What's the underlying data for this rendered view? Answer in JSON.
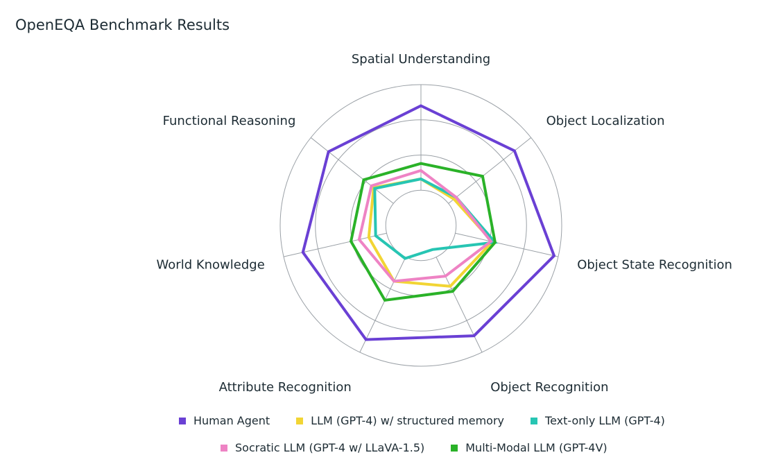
{
  "title": "OpenEQA Benchmark Results",
  "chart_data": {
    "type": "radar",
    "title": "OpenEQA Benchmark Results",
    "axes": [
      "Spatial Understanding",
      "Object Localization",
      "Object State Recognition",
      "Object Recognition",
      "Attribute Recognition",
      "World Knowledge",
      "Functional Reasoning"
    ],
    "rlim": [
      0,
      100
    ],
    "rings": 4,
    "grid": true,
    "legend_position": "bottom",
    "series": [
      {
        "name": "Human Agent",
        "color": "#6a40d4",
        "values": [
          85,
          85,
          97,
          87,
          90,
          86,
          84
        ]
      },
      {
        "name": "LLM (GPT-4) w/ structured memory",
        "color": "#f2d534",
        "values": [
          33,
          30,
          52,
          48,
          44,
          38,
          43
        ]
      },
      {
        "name": "Text-only LLM (GPT-4)",
        "color": "#27c5b3",
        "values": [
          33,
          32,
          54,
          19,
          26,
          33,
          42
        ]
      },
      {
        "name": "Socratic LLM (GPT-4 w/ LLaVA-1.5)",
        "color": "#ee83c4",
        "values": [
          39,
          32,
          51,
          40,
          44,
          45,
          45
        ]
      },
      {
        "name": "Multi-Modal LLM (GPT-4V)",
        "color": "#2ab228",
        "values": [
          44,
          56,
          54,
          52,
          59,
          51,
          52
        ]
      }
    ]
  }
}
